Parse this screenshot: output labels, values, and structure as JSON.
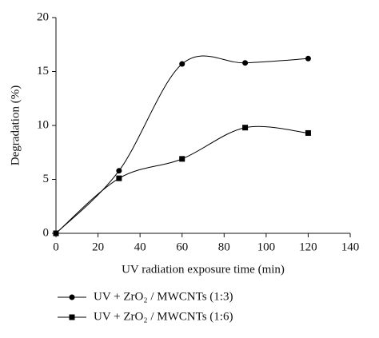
{
  "chart_data": {
    "type": "line",
    "x_label": "UV radiation exposure time (min)",
    "y_label": "Degradation (%)",
    "x": [
      0,
      30,
      60,
      90,
      120
    ],
    "series": [
      {
        "name": "UV + ZrO₂ / MWCNTs (1:3)",
        "color": "#000000",
        "marker": "circle",
        "values": [
          0,
          5.8,
          15.7,
          15.8,
          16.2
        ]
      },
      {
        "name": "UV + ZrO₂ / MWCNTs (1:6)",
        "color": "#000000",
        "marker": "square",
        "values": [
          0,
          5.1,
          6.9,
          9.8,
          9.3
        ]
      }
    ],
    "xlim": [
      0,
      140
    ],
    "xticks": [
      0,
      20,
      40,
      60,
      80,
      100,
      120,
      140
    ],
    "ylim": [
      0,
      20
    ],
    "yticks": [
      0,
      5,
      10,
      15,
      20
    ],
    "smooth": true,
    "legend": "bottom"
  }
}
